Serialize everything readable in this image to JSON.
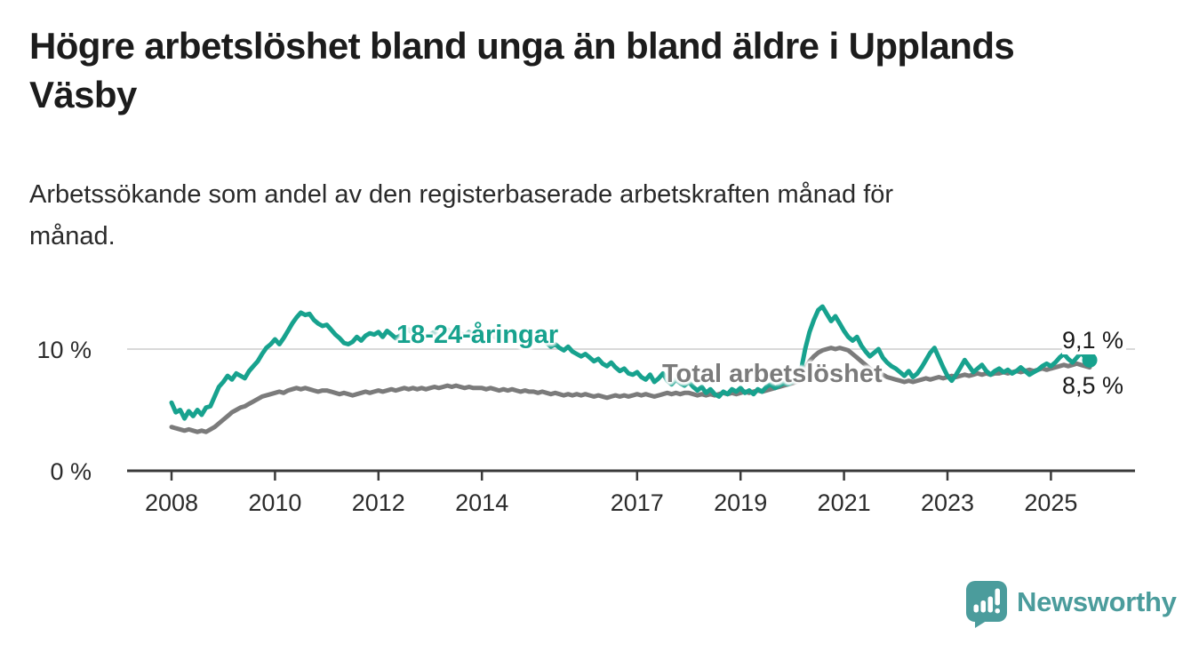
{
  "header": {
    "title_line1": "Högre arbetslöshet bland unga än bland äldre i Upplands",
    "title_line2": "Väsby",
    "subtitle_line1": "Arbetssökande som andel av den registerbaserade arbetskraften månad för",
    "subtitle_line2": "månad."
  },
  "colors": {
    "young_series": "#17a28e",
    "total_series": "#7b7b7b",
    "gridline": "#d9d9d9",
    "axis": "#3a3a3a",
    "text": "#2b2b2b"
  },
  "chart_data": {
    "type": "line",
    "title": "Högre arbetslöshet bland unga än bland äldre i Upplands Väsby",
    "subtitle": "Arbetssökande som andel av den registerbaserade arbetskraften månad för månad.",
    "unit": "%",
    "x_start": "2008-01",
    "x_end": "2025-10",
    "x_frequency": "monthly",
    "x_tick_labels": [
      "2008",
      "2010",
      "2012",
      "2014",
      "2017",
      "2019",
      "2021",
      "2023",
      "2025"
    ],
    "y_axis": {
      "tick_labels": [
        "0 %",
        "10 %"
      ],
      "tick_values": [
        0,
        10
      ],
      "min": 0,
      "gridline_value": 10
    },
    "grid": "single horizontal gridline at 10 %",
    "legend_position": "inline labels on lines",
    "series": [
      {
        "name": "18-24-åringar",
        "color": "#17a28e",
        "end_label": "9,1 %",
        "end_value": 9.1,
        "end_dot": true,
        "values": [
          5.6,
          4.8,
          5.0,
          4.3,
          4.9,
          4.5,
          5.0,
          4.6,
          5.2,
          5.3,
          6.1,
          6.9,
          7.3,
          7.8,
          7.5,
          8.0,
          7.8,
          7.6,
          8.2,
          8.6,
          9.0,
          9.6,
          10.1,
          10.4,
          10.8,
          10.4,
          10.9,
          11.5,
          12.1,
          12.6,
          13.0,
          12.8,
          12.9,
          12.4,
          12.1,
          11.9,
          12.0,
          11.6,
          11.2,
          10.9,
          10.5,
          10.4,
          10.6,
          11.0,
          10.7,
          11.1,
          11.3,
          11.2,
          11.4,
          11.0,
          11.5,
          11.2,
          10.9,
          11.1,
          11.4,
          11.6,
          11.3,
          11.5,
          11.2,
          11.0,
          11.2,
          11.4,
          11.1,
          11.3,
          11.6,
          11.4,
          11.5,
          11.3,
          11.1,
          11.4,
          11.2,
          11.0,
          11.1,
          10.9,
          11.2,
          11.0,
          10.8,
          11.0,
          11.2,
          10.9,
          10.7,
          10.9,
          10.6,
          10.8,
          10.9,
          10.6,
          10.8,
          10.5,
          10.2,
          10.4,
          10.1,
          9.9,
          10.2,
          9.8,
          9.6,
          9.4,
          9.6,
          9.3,
          9.0,
          9.2,
          8.8,
          8.6,
          8.9,
          8.5,
          8.2,
          8.4,
          8.0,
          7.9,
          8.1,
          7.7,
          7.5,
          7.9,
          7.3,
          7.6,
          8.0,
          7.4,
          7.1,
          7.5,
          7.2,
          7.0,
          7.3,
          6.9,
          6.6,
          6.9,
          6.4,
          6.7,
          6.3,
          6.1,
          6.5,
          6.3,
          6.7,
          6.5,
          6.8,
          6.4,
          6.6,
          6.3,
          6.7,
          6.5,
          6.9,
          7.1,
          6.8,
          7.0,
          7.2,
          7.1,
          7.3,
          7.5,
          8.2,
          10.0,
          11.4,
          12.4,
          13.2,
          13.5,
          12.9,
          12.3,
          12.7,
          12.1,
          11.5,
          11.0,
          10.7,
          11.0,
          10.3,
          9.8,
          9.4,
          9.7,
          10.0,
          9.3,
          8.9,
          8.6,
          8.4,
          8.1,
          7.8,
          8.2,
          7.7,
          8.0,
          8.5,
          9.1,
          9.7,
          10.1,
          9.3,
          8.5,
          7.8,
          7.4,
          7.9,
          8.5,
          9.1,
          8.6,
          8.1,
          8.4,
          8.7,
          8.2,
          7.9,
          8.2,
          8.4,
          8.1,
          8.3,
          8.0,
          8.2,
          8.5,
          8.2,
          7.9,
          8.1,
          8.3,
          8.6,
          8.8,
          8.6,
          8.9,
          9.3,
          9.6,
          9.2,
          8.9,
          9.3,
          9.7,
          9.3,
          9.1
        ]
      },
      {
        "name": "Total arbetslöshet",
        "color": "#7b7b7b",
        "end_label": "8,5 %",
        "end_value": 8.5,
        "end_dot": false,
        "values": [
          3.6,
          3.5,
          3.4,
          3.3,
          3.4,
          3.3,
          3.2,
          3.3,
          3.2,
          3.4,
          3.6,
          3.9,
          4.2,
          4.5,
          4.8,
          5.0,
          5.2,
          5.3,
          5.5,
          5.7,
          5.9,
          6.1,
          6.2,
          6.3,
          6.4,
          6.5,
          6.4,
          6.6,
          6.7,
          6.8,
          6.7,
          6.8,
          6.7,
          6.6,
          6.5,
          6.6,
          6.6,
          6.5,
          6.4,
          6.3,
          6.4,
          6.3,
          6.2,
          6.3,
          6.4,
          6.5,
          6.4,
          6.5,
          6.6,
          6.5,
          6.6,
          6.7,
          6.6,
          6.7,
          6.8,
          6.7,
          6.8,
          6.7,
          6.8,
          6.7,
          6.8,
          6.9,
          6.8,
          6.9,
          7.0,
          6.9,
          7.0,
          6.9,
          6.8,
          6.9,
          6.8,
          6.8,
          6.8,
          6.7,
          6.8,
          6.7,
          6.6,
          6.7,
          6.6,
          6.7,
          6.6,
          6.5,
          6.6,
          6.5,
          6.5,
          6.4,
          6.5,
          6.4,
          6.3,
          6.4,
          6.3,
          6.2,
          6.3,
          6.2,
          6.3,
          6.2,
          6.3,
          6.2,
          6.1,
          6.2,
          6.1,
          6.0,
          6.1,
          6.2,
          6.1,
          6.2,
          6.1,
          6.2,
          6.3,
          6.2,
          6.3,
          6.2,
          6.1,
          6.2,
          6.3,
          6.4,
          6.3,
          6.4,
          6.3,
          6.4,
          6.4,
          6.3,
          6.2,
          6.3,
          6.2,
          6.3,
          6.2,
          6.3,
          6.4,
          6.3,
          6.4,
          6.3,
          6.4,
          6.5,
          6.4,
          6.5,
          6.6,
          6.5,
          6.6,
          6.7,
          6.8,
          6.9,
          7.0,
          7.1,
          7.2,
          7.3,
          7.6,
          8.4,
          9.0,
          9.4,
          9.7,
          9.9,
          10.0,
          10.1,
          10.0,
          10.1,
          10.0,
          9.9,
          9.6,
          9.3,
          9.0,
          8.7,
          8.4,
          8.2,
          8.0,
          7.9,
          7.7,
          7.6,
          7.5,
          7.4,
          7.3,
          7.4,
          7.3,
          7.4,
          7.5,
          7.6,
          7.5,
          7.6,
          7.7,
          7.6,
          7.7,
          7.8,
          7.7,
          7.8,
          7.9,
          7.8,
          7.9,
          8.0,
          7.9,
          8.0,
          7.9,
          8.0,
          8.0,
          8.1,
          8.0,
          8.1,
          8.2,
          8.1,
          8.2,
          8.3,
          8.2,
          8.3,
          8.4,
          8.3,
          8.4,
          8.5,
          8.6,
          8.7,
          8.6,
          8.7,
          8.8,
          8.7,
          8.6,
          8.5
        ]
      }
    ]
  },
  "footer": {
    "brand": "Newsworthy",
    "brand_color": "#4b9c9c",
    "logo_icon": "bar-chart-speech-bubble-icon"
  }
}
